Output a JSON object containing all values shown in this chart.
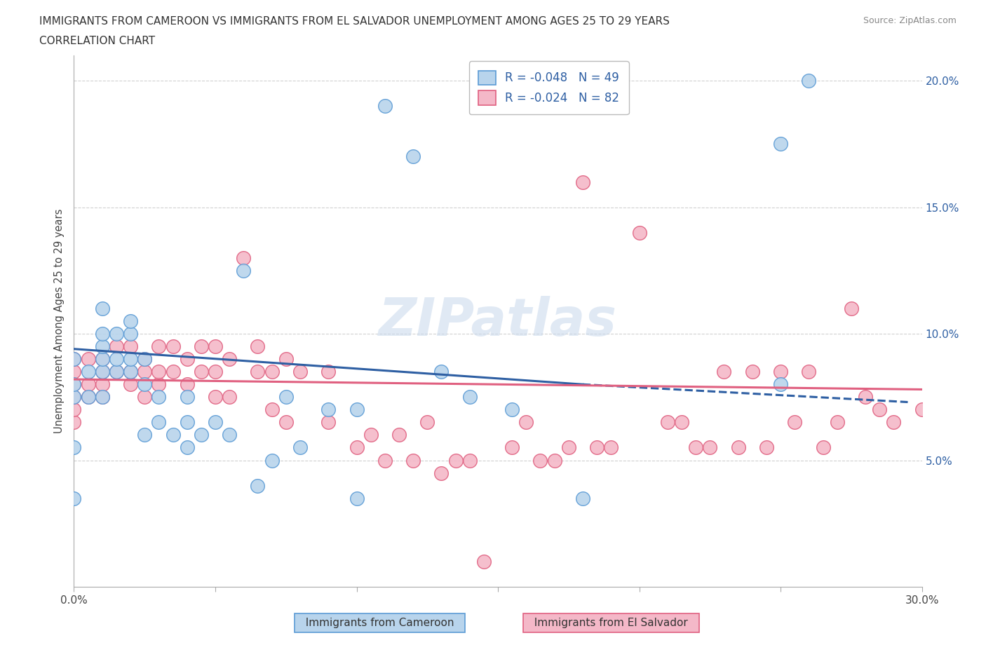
{
  "title_line1": "IMMIGRANTS FROM CAMEROON VS IMMIGRANTS FROM EL SALVADOR UNEMPLOYMENT AMONG AGES 25 TO 29 YEARS",
  "title_line2": "CORRELATION CHART",
  "source_text": "Source: ZipAtlas.com",
  "ylabel": "Unemployment Among Ages 25 to 29 years",
  "xlim": [
    0.0,
    0.3
  ],
  "ylim": [
    0.0,
    0.21
  ],
  "xtick_pos": [
    0.0,
    0.05,
    0.1,
    0.15,
    0.2,
    0.25,
    0.3
  ],
  "xtick_labels": [
    "0.0%",
    "",
    "",
    "",
    "",
    "",
    "30.0%"
  ],
  "ytick_pos": [
    0.0,
    0.05,
    0.1,
    0.15,
    0.2
  ],
  "ytick_labels_right": [
    "",
    "5.0%",
    "10.0%",
    "15.0%",
    "20.0%"
  ],
  "color_cameroon_fill": "#b8d4ec",
  "color_cameroon_edge": "#5b9bd5",
  "color_elsalvador_fill": "#f4b8c8",
  "color_elsalvador_edge": "#e06080",
  "color_trend_blue": "#2e5fa3",
  "color_trend_pink": "#e06080",
  "watermark_text": "ZIPatlas",
  "cameroon_x": [
    0.0,
    0.0,
    0.0,
    0.0,
    0.0,
    0.005,
    0.005,
    0.01,
    0.01,
    0.01,
    0.01,
    0.01,
    0.01,
    0.015,
    0.015,
    0.015,
    0.02,
    0.02,
    0.02,
    0.02,
    0.025,
    0.025,
    0.025,
    0.03,
    0.03,
    0.035,
    0.04,
    0.04,
    0.04,
    0.045,
    0.05,
    0.055,
    0.06,
    0.065,
    0.07,
    0.075,
    0.08,
    0.09,
    0.1,
    0.1,
    0.11,
    0.12,
    0.13,
    0.14,
    0.155,
    0.18,
    0.25,
    0.25,
    0.26
  ],
  "cameroon_y": [
    0.035,
    0.055,
    0.075,
    0.08,
    0.09,
    0.075,
    0.085,
    0.075,
    0.085,
    0.09,
    0.095,
    0.1,
    0.11,
    0.085,
    0.09,
    0.1,
    0.085,
    0.09,
    0.1,
    0.105,
    0.06,
    0.08,
    0.09,
    0.065,
    0.075,
    0.06,
    0.055,
    0.065,
    0.075,
    0.06,
    0.065,
    0.06,
    0.125,
    0.04,
    0.05,
    0.075,
    0.055,
    0.07,
    0.035,
    0.07,
    0.19,
    0.17,
    0.085,
    0.075,
    0.07,
    0.035,
    0.08,
    0.175,
    0.2
  ],
  "elsalvador_x": [
    0.0,
    0.0,
    0.0,
    0.0,
    0.0,
    0.0,
    0.005,
    0.005,
    0.005,
    0.01,
    0.01,
    0.01,
    0.01,
    0.015,
    0.015,
    0.02,
    0.02,
    0.02,
    0.025,
    0.025,
    0.025,
    0.03,
    0.03,
    0.03,
    0.035,
    0.035,
    0.04,
    0.04,
    0.045,
    0.045,
    0.05,
    0.05,
    0.05,
    0.055,
    0.055,
    0.06,
    0.065,
    0.065,
    0.07,
    0.07,
    0.075,
    0.075,
    0.08,
    0.09,
    0.09,
    0.1,
    0.105,
    0.11,
    0.115,
    0.12,
    0.125,
    0.13,
    0.135,
    0.14,
    0.145,
    0.155,
    0.16,
    0.165,
    0.17,
    0.175,
    0.18,
    0.185,
    0.19,
    0.2,
    0.21,
    0.215,
    0.22,
    0.225,
    0.23,
    0.235,
    0.24,
    0.245,
    0.25,
    0.255,
    0.26,
    0.265,
    0.27,
    0.275,
    0.28,
    0.285,
    0.29,
    0.3
  ],
  "elsalvador_y": [
    0.065,
    0.07,
    0.075,
    0.08,
    0.085,
    0.09,
    0.075,
    0.08,
    0.09,
    0.075,
    0.08,
    0.085,
    0.09,
    0.085,
    0.095,
    0.08,
    0.085,
    0.095,
    0.075,
    0.085,
    0.09,
    0.08,
    0.085,
    0.095,
    0.085,
    0.095,
    0.08,
    0.09,
    0.085,
    0.095,
    0.075,
    0.085,
    0.095,
    0.075,
    0.09,
    0.13,
    0.085,
    0.095,
    0.07,
    0.085,
    0.065,
    0.09,
    0.085,
    0.065,
    0.085,
    0.055,
    0.06,
    0.05,
    0.06,
    0.05,
    0.065,
    0.045,
    0.05,
    0.05,
    0.01,
    0.055,
    0.065,
    0.05,
    0.05,
    0.055,
    0.16,
    0.055,
    0.055,
    0.14,
    0.065,
    0.065,
    0.055,
    0.055,
    0.085,
    0.055,
    0.085,
    0.055,
    0.085,
    0.065,
    0.085,
    0.055,
    0.065,
    0.11,
    0.075,
    0.07,
    0.065,
    0.07
  ]
}
